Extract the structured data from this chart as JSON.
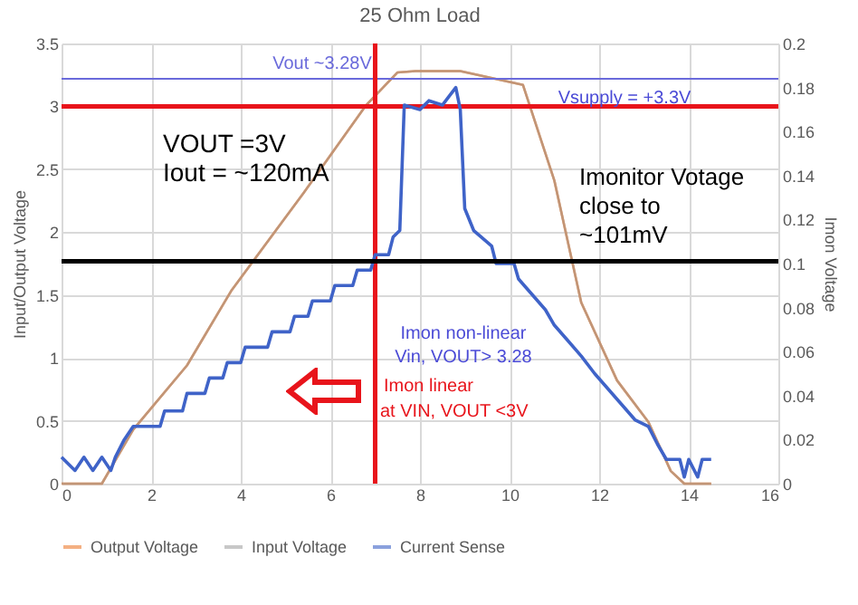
{
  "chart_data": {
    "type": "line",
    "title": "25 Ohm Load",
    "ylabel": "Input/Output Voltage",
    "y2label": "Imon Voltage",
    "xlim": [
      0,
      16
    ],
    "xticks": [
      0,
      2,
      4,
      6,
      8,
      10,
      12,
      14,
      16
    ],
    "ylim": [
      0,
      3.5
    ],
    "yticks": [
      0,
      0.5,
      1,
      1.5,
      2,
      2.5,
      3,
      3.5
    ],
    "y2lim": [
      0,
      0.2
    ],
    "y2ticks": [
      0,
      0.02,
      0.04,
      0.06,
      0.08,
      0.1,
      0.12,
      0.14,
      0.16,
      0.18,
      0.2
    ],
    "grid": true,
    "legend": "bottom",
    "series": [
      {
        "name": "Output Voltage",
        "color": "#ed7d31",
        "x": [
          0,
          0.9,
          1.6,
          2.8,
          3.8,
          5.4,
          6.8,
          7.5,
          7.9,
          8.9,
          10.3,
          11,
          11.6,
          12.4,
          13.1,
          13.6,
          13.9,
          14.5
        ],
        "values": [
          0,
          0,
          0.43,
          0.94,
          1.54,
          2.31,
          3.01,
          3.27,
          3.28,
          3.28,
          3.17,
          2.41,
          1.44,
          0.82,
          0.49,
          0.1,
          0,
          0
        ]
      },
      {
        "name": "Input Voltage",
        "color": "#a5a5a5",
        "x": [
          0,
          0.9,
          1.6,
          2.8,
          3.8,
          5.4,
          6.8,
          7.5,
          7.9,
          8.9,
          10.3,
          11,
          11.6,
          12.4,
          13.1,
          13.6,
          13.9,
          14.5
        ],
        "values": [
          0,
          0,
          0.43,
          0.94,
          1.54,
          2.31,
          3.01,
          3.27,
          3.28,
          3.28,
          3.17,
          2.41,
          1.44,
          0.82,
          0.49,
          0.1,
          0,
          0
        ]
      },
      {
        "name": "Current Sense",
        "color": "#3f63c8",
        "axis": "y2",
        "x": [
          0,
          0.3,
          0.5,
          0.7,
          0.9,
          1.1,
          1.2,
          1.4,
          1.6,
          2.2,
          2.3,
          2.7,
          2.8,
          3.2,
          3.3,
          3.6,
          3.7,
          4,
          4.1,
          4.6,
          4.7,
          5.1,
          5.2,
          5.5,
          5.6,
          6,
          6.1,
          6.5,
          6.6,
          6.9,
          7,
          7.3,
          7.4,
          7.55,
          7.65,
          8,
          8.2,
          8.5,
          8.8,
          8.9,
          9,
          9.2,
          9.6,
          9.7,
          10.1,
          10.2,
          10.5,
          10.8,
          11,
          11.3,
          11.6,
          11.9,
          12.2,
          12.5,
          12.8,
          13.1,
          13.3,
          13.5,
          13.8,
          13.9,
          14,
          14.2,
          14.3,
          14.5
        ],
        "values": [
          0.012,
          0.006,
          0.012,
          0.006,
          0.012,
          0.006,
          0.012,
          0.02,
          0.026,
          0.026,
          0.033,
          0.033,
          0.041,
          0.041,
          0.048,
          0.048,
          0.055,
          0.055,
          0.062,
          0.062,
          0.069,
          0.069,
          0.076,
          0.076,
          0.083,
          0.083,
          0.09,
          0.09,
          0.097,
          0.097,
          0.104,
          0.104,
          0.112,
          0.115,
          0.172,
          0.17,
          0.174,
          0.172,
          0.18,
          0.17,
          0.125,
          0.115,
          0.108,
          0.1,
          0.1,
          0.093,
          0.086,
          0.079,
          0.072,
          0.065,
          0.058,
          0.05,
          0.043,
          0.036,
          0.029,
          0.026,
          0.018,
          0.011,
          0.011,
          0.003,
          0.011,
          0.003,
          0.011,
          0.011
        ]
      }
    ],
    "ref_lines": [
      {
        "axis": "y",
        "value": 3.22,
        "label": "Vout ~3.28V",
        "color": "#6a6adb"
      },
      {
        "axis": "y",
        "value": 3,
        "color": "#e8141b"
      },
      {
        "axis": "x",
        "value": 7,
        "color": "#e8141b"
      },
      {
        "axis": "y2",
        "value": 0.101,
        "color": "#000000"
      }
    ],
    "annotations": [
      "VOUT =3V",
      "Iout = ~120mA",
      "Imonitor Votage",
      "close to",
      "~101mV",
      "Vsupply = +3.3V",
      "Imon non-linear",
      "Vin, VOUT> 3.28",
      "Imon linear",
      "at VIN, VOUT <3V"
    ]
  }
}
